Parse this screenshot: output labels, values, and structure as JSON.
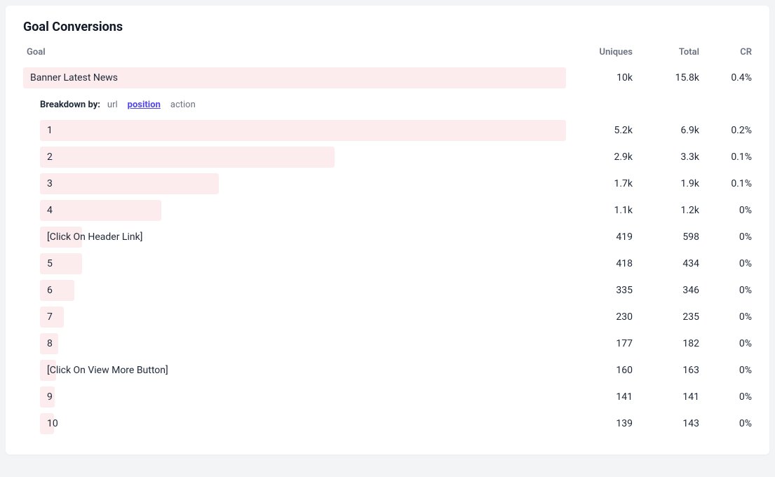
{
  "title": "Goal Conversions",
  "columns": {
    "goal": "Goal",
    "uniques": "Uniques",
    "total": "Total",
    "cr": "CR"
  },
  "bar_color": "#fdecee",
  "bar_text_color": "#1f2937",
  "breakdown": {
    "label": "Breakdown by:",
    "options": [
      "url",
      "position",
      "action"
    ],
    "active": "position"
  },
  "main_row": {
    "label": "Banner Latest News",
    "uniques": "10k",
    "total": "15.8k",
    "cr": "0.4%",
    "bar_pct": 100
  },
  "child_rows": [
    {
      "label": "1",
      "uniques": "5.2k",
      "total": "6.9k",
      "cr": "0.2%",
      "bar_pct": 100
    },
    {
      "label": "2",
      "uniques": "2.9k",
      "total": "3.3k",
      "cr": "0.1%",
      "bar_pct": 56
    },
    {
      "label": "3",
      "uniques": "1.7k",
      "total": "1.9k",
      "cr": "0.1%",
      "bar_pct": 34
    },
    {
      "label": "4",
      "uniques": "1.1k",
      "total": "1.2k",
      "cr": "0%",
      "bar_pct": 23
    },
    {
      "label": "[Click On Header Link]",
      "uniques": "419",
      "total": "598",
      "cr": "0%",
      "bar_pct": 8
    },
    {
      "label": "5",
      "uniques": "418",
      "total": "434",
      "cr": "0%",
      "bar_pct": 8
    },
    {
      "label": "6",
      "uniques": "335",
      "total": "346",
      "cr": "0%",
      "bar_pct": 6.5
    },
    {
      "label": "7",
      "uniques": "230",
      "total": "235",
      "cr": "0%",
      "bar_pct": 4.5
    },
    {
      "label": "8",
      "uniques": "177",
      "total": "182",
      "cr": "0%",
      "bar_pct": 3.5
    },
    {
      "label": "[Click On View More Button]",
      "uniques": "160",
      "total": "163",
      "cr": "0%",
      "bar_pct": 3.1
    },
    {
      "label": "9",
      "uniques": "141",
      "total": "141",
      "cr": "0%",
      "bar_pct": 2.8
    },
    {
      "label": "10",
      "uniques": "139",
      "total": "143",
      "cr": "0%",
      "bar_pct": 2.7
    }
  ]
}
